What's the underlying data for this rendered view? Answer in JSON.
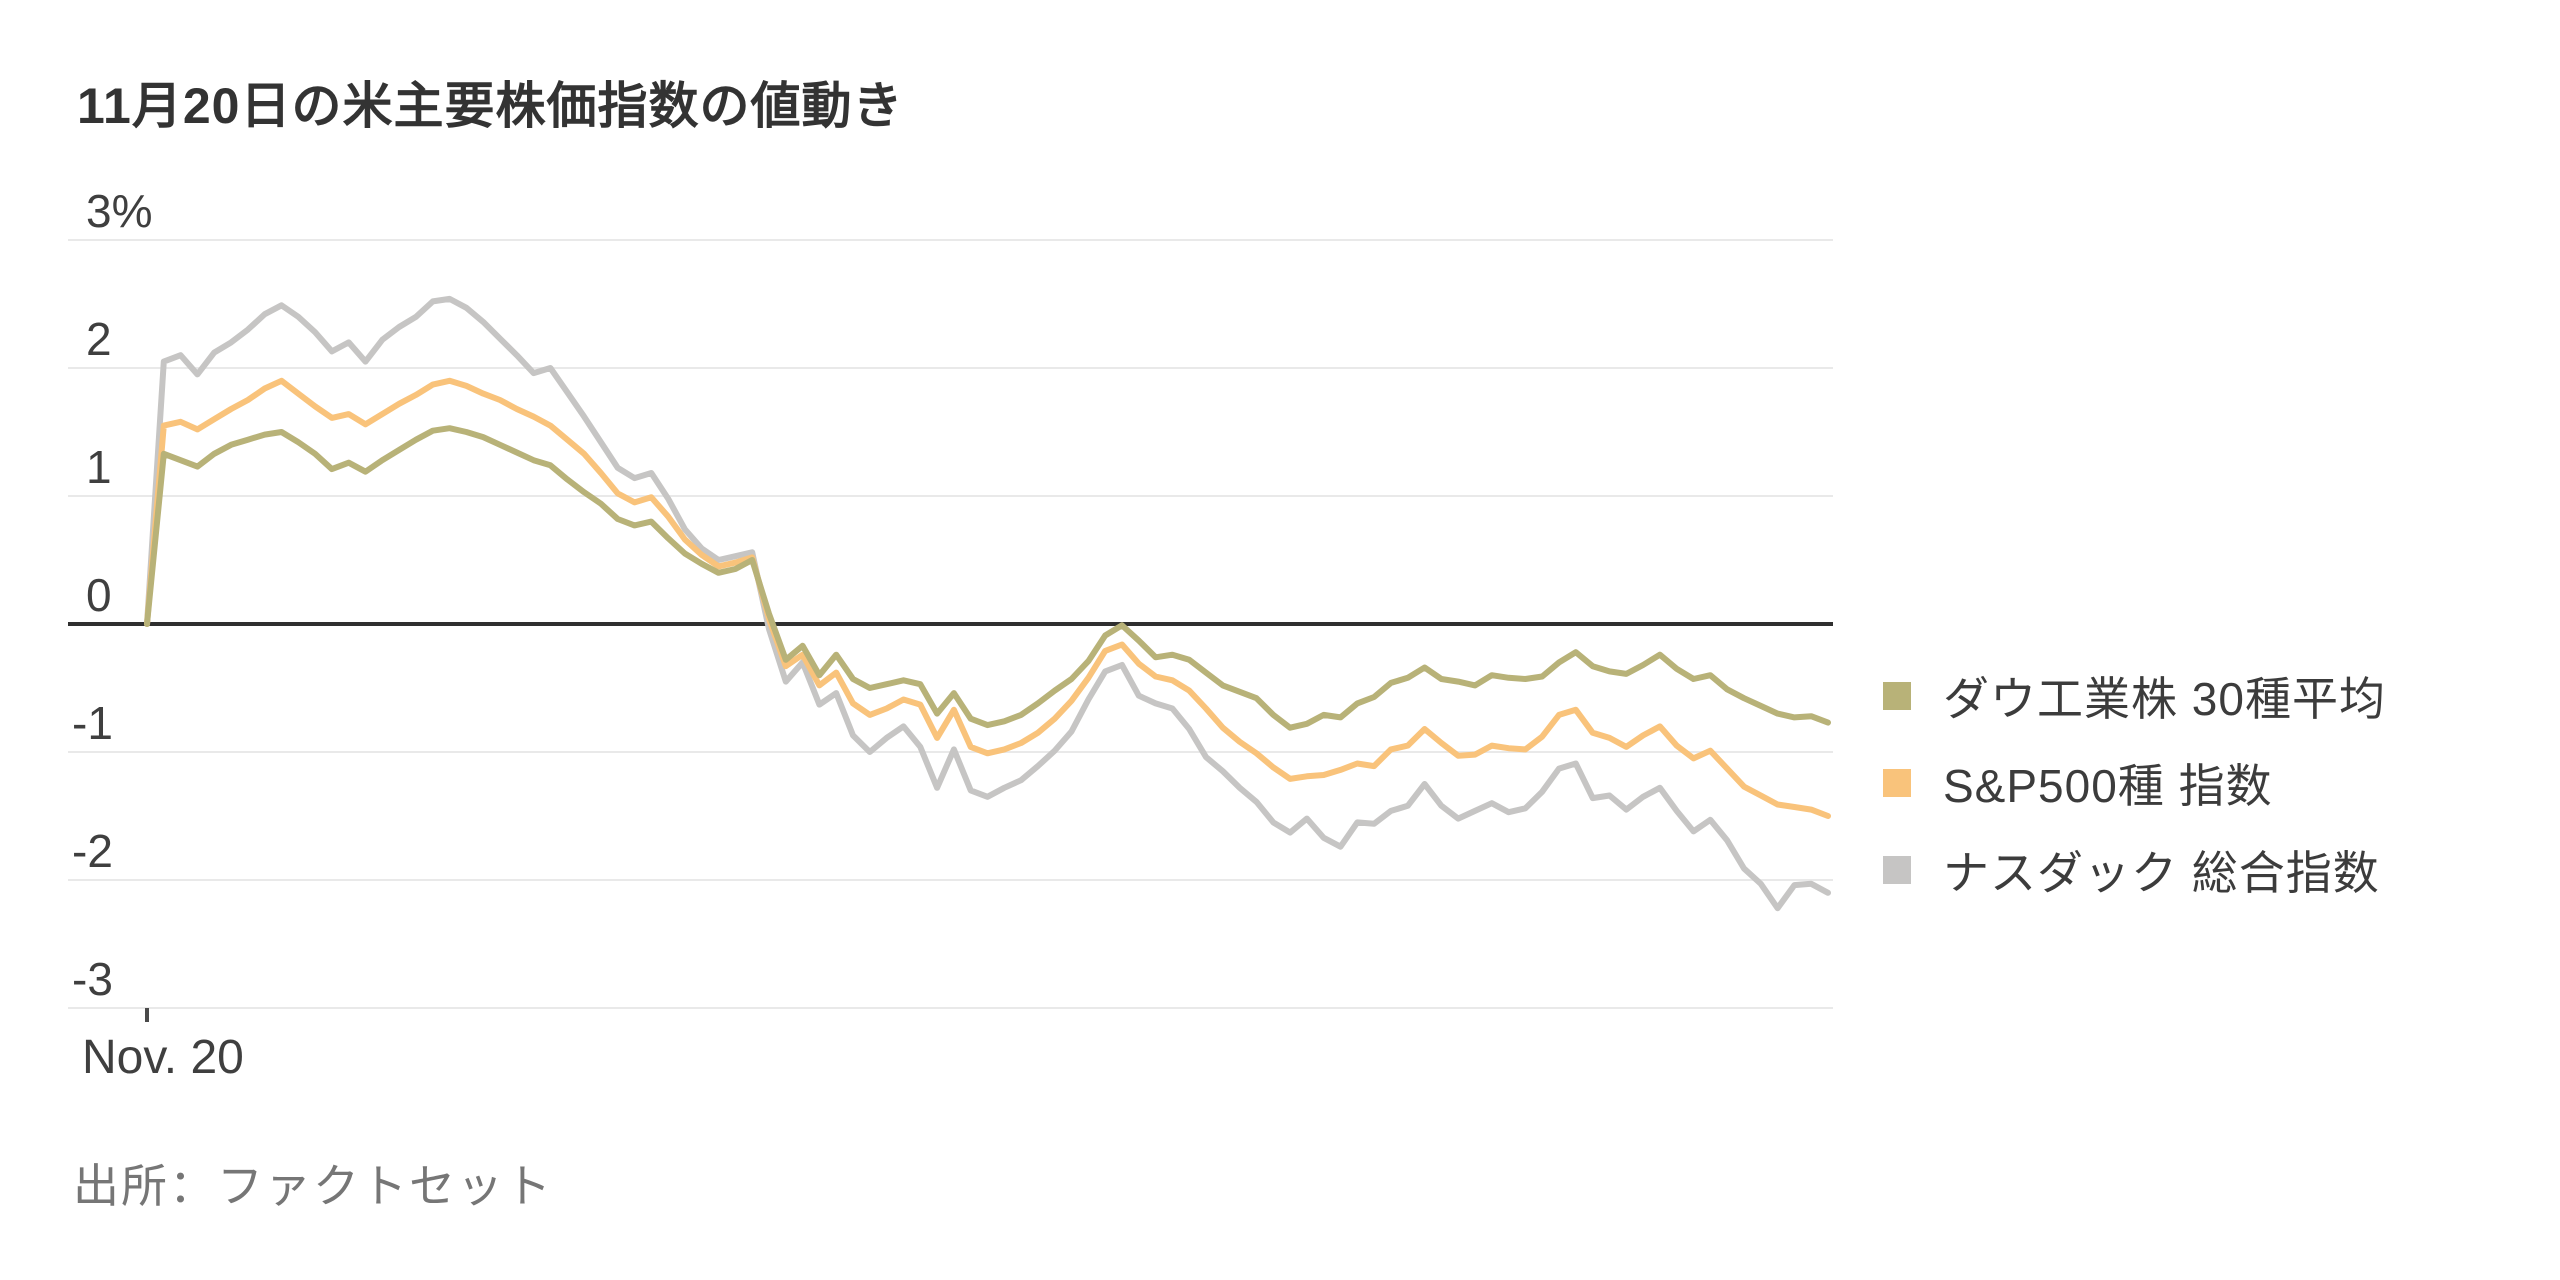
{
  "title": "11月20日の米主要株価指数の値動き",
  "source": "出所：ファクトセット",
  "x_axis": {
    "label": "Nov. 20"
  },
  "y_axis": {
    "labels": [
      "3%",
      "2",
      "1",
      "0",
      "-1",
      "-2",
      "-3"
    ],
    "values": [
      3,
      2,
      1,
      0,
      -1,
      -2,
      -3
    ]
  },
  "legend": [
    {
      "label": "ダウ工業株 30種平均",
      "color": "#b8b278"
    },
    {
      "label": "S&P500種 指数",
      "color": "#f9c37b"
    },
    {
      "label": "ナスダック 総合指数",
      "color": "#c6c5c4"
    }
  ],
  "colors": {
    "dow": "#b8b278",
    "sp500": "#f9c37b",
    "nasdaq": "#c6c5c4",
    "zero_line": "#2f2f2f",
    "gridline": "#e9e9e9",
    "title_text": "#333333",
    "axis_text": "#3f3f3f",
    "source_text": "#767676"
  },
  "chart_data": {
    "type": "line",
    "title": "11月20日の米主要株価指数の値動き",
    "xlabel": "Nov. 20",
    "ylabel": "",
    "x_description": "Nov. 20 U.S. trading session; each series sampled at 101 evenly spaced times from open (0) to close (100), values in % change",
    "x": "0-100 percent of session, step 1",
    "ylim": [
      -3,
      3
    ],
    "y_ticks": [
      3,
      2,
      1,
      0,
      -1,
      -2,
      -3
    ],
    "grid": true,
    "legend_position": "right",
    "series": [
      {
        "id": "dow",
        "name": "ダウ工業株 30種平均",
        "color": "#b8b278",
        "values": [
          0,
          1.33,
          1.28,
          1.23,
          1.33,
          1.4,
          1.44,
          1.48,
          1.5,
          1.42,
          1.33,
          1.21,
          1.26,
          1.19,
          1.28,
          1.36,
          1.44,
          1.51,
          1.53,
          1.5,
          1.46,
          1.4,
          1.34,
          1.28,
          1.24,
          1.13,
          1.03,
          0.94,
          0.82,
          0.77,
          0.8,
          0.67,
          0.55,
          0.47,
          0.4,
          0.43,
          0.5,
          0.08,
          -0.28,
          -0.17,
          -0.4,
          -0.24,
          -0.43,
          -0.5,
          -0.47,
          -0.44,
          -0.47,
          -0.7,
          -0.54,
          -0.74,
          -0.79,
          -0.76,
          -0.71,
          -0.62,
          -0.52,
          -0.43,
          -0.29,
          -0.09,
          -0.01,
          -0.13,
          -0.26,
          -0.24,
          -0.28,
          -0.38,
          -0.48,
          -0.53,
          -0.58,
          -0.71,
          -0.81,
          -0.78,
          -0.71,
          -0.73,
          -0.62,
          -0.57,
          -0.46,
          -0.42,
          -0.34,
          -0.43,
          -0.45,
          -0.48,
          -0.4,
          -0.42,
          -0.43,
          -0.41,
          -0.3,
          -0.22,
          -0.33,
          -0.37,
          -0.39,
          -0.32,
          -0.24,
          -0.35,
          -0.43,
          -0.4,
          -0.51,
          -0.58,
          -0.64,
          -0.7,
          -0.73,
          -0.72,
          -0.77
        ]
      },
      {
        "id": "sp500",
        "name": "S&P500種 指数",
        "color": "#f9c37b",
        "values": [
          0,
          1.55,
          1.58,
          1.52,
          1.6,
          1.68,
          1.75,
          1.84,
          1.9,
          1.8,
          1.7,
          1.61,
          1.64,
          1.56,
          1.64,
          1.72,
          1.79,
          1.87,
          1.9,
          1.86,
          1.8,
          1.75,
          1.68,
          1.62,
          1.55,
          1.44,
          1.33,
          1.18,
          1.02,
          0.95,
          0.99,
          0.84,
          0.66,
          0.54,
          0.45,
          0.48,
          0.52,
          0.04,
          -0.33,
          -0.24,
          -0.48,
          -0.38,
          -0.62,
          -0.71,
          -0.66,
          -0.59,
          -0.63,
          -0.89,
          -0.67,
          -0.96,
          -1.01,
          -0.98,
          -0.93,
          -0.85,
          -0.74,
          -0.6,
          -0.42,
          -0.21,
          -0.16,
          -0.31,
          -0.41,
          -0.44,
          -0.52,
          -0.66,
          -0.81,
          -0.92,
          -1.01,
          -1.12,
          -1.21,
          -1.19,
          -1.18,
          -1.14,
          -1.09,
          -1.11,
          -0.98,
          -0.95,
          -0.82,
          -0.93,
          -1.03,
          -1.02,
          -0.95,
          -0.97,
          -0.98,
          -0.88,
          -0.71,
          -0.67,
          -0.85,
          -0.89,
          -0.96,
          -0.87,
          -0.8,
          -0.95,
          -1.05,
          -0.99,
          -1.13,
          -1.27,
          -1.34,
          -1.41,
          -1.43,
          -1.45,
          -1.5
        ]
      },
      {
        "id": "nasdaq",
        "name": "ナスダック 総合指数",
        "color": "#c6c5c4",
        "values": [
          0,
          2.05,
          2.1,
          1.95,
          2.12,
          2.2,
          2.3,
          2.42,
          2.49,
          2.4,
          2.28,
          2.13,
          2.2,
          2.05,
          2.22,
          2.32,
          2.4,
          2.52,
          2.54,
          2.47,
          2.36,
          2.23,
          2.1,
          1.96,
          2.0,
          1.81,
          1.62,
          1.42,
          1.22,
          1.14,
          1.18,
          0.98,
          0.74,
          0.59,
          0.5,
          0.53,
          0.56,
          -0.04,
          -0.45,
          -0.3,
          -0.63,
          -0.54,
          -0.87,
          -1.0,
          -0.89,
          -0.8,
          -0.96,
          -1.28,
          -0.98,
          -1.3,
          -1.35,
          -1.28,
          -1.22,
          -1.11,
          -0.99,
          -0.84,
          -0.59,
          -0.37,
          -0.32,
          -0.56,
          -0.62,
          -0.66,
          -0.82,
          -1.04,
          -1.15,
          -1.28,
          -1.39,
          -1.55,
          -1.63,
          -1.52,
          -1.67,
          -1.74,
          -1.55,
          -1.56,
          -1.46,
          -1.42,
          -1.25,
          -1.42,
          -1.52,
          -1.46,
          -1.4,
          -1.47,
          -1.44,
          -1.31,
          -1.13,
          -1.09,
          -1.36,
          -1.34,
          -1.45,
          -1.35,
          -1.28,
          -1.46,
          -1.62,
          -1.53,
          -1.69,
          -1.91,
          -2.03,
          -2.22,
          -2.04,
          -2.03,
          -2.1
        ]
      }
    ]
  }
}
